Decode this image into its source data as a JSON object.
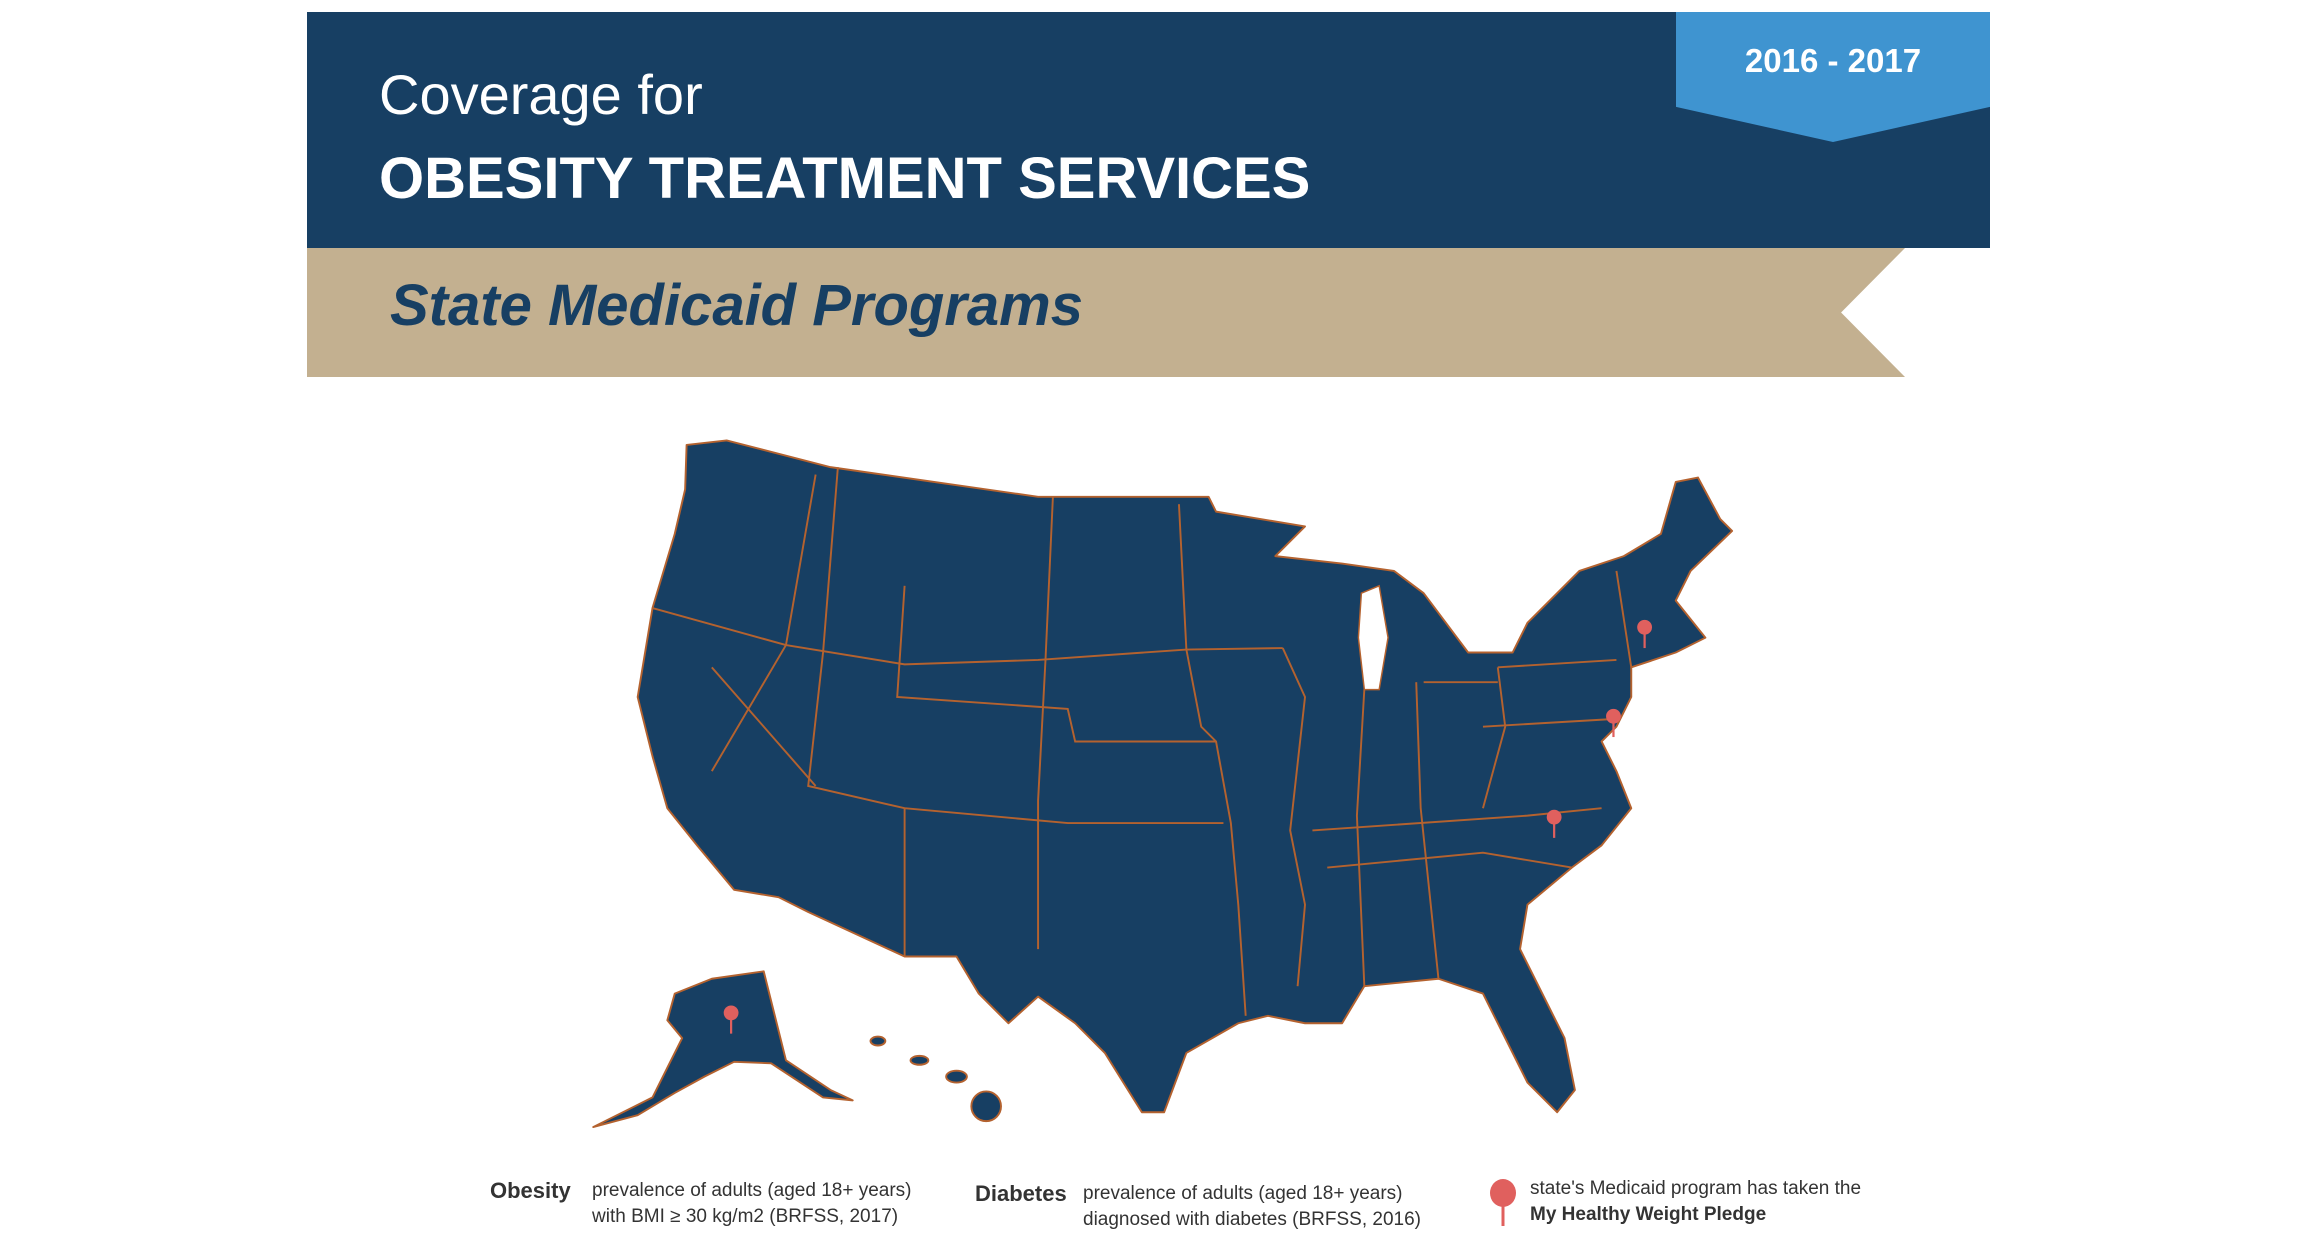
{
  "header": {
    "subtitle": "Coverage for",
    "title": "OBESITY TREATMENT SERVICES",
    "years": "2016 - 2017",
    "banner": "State Medicaid Programs"
  },
  "colors": {
    "navy": "#173f63",
    "tan": "#c3b090",
    "year_badge": "#3f94d0",
    "pin": "#e0605e",
    "state_border": "#b4622f"
  },
  "map": {
    "pledge_states": [
      "Connecticut",
      "Delaware",
      "North Carolina",
      "Alaska"
    ]
  },
  "legend": {
    "obesity": {
      "key": "Obesity",
      "line1": "prevalence of adults (aged 18+ years)",
      "line2": "with BMI ≥ 30 kg/m2 (BRFSS, 2017)"
    },
    "diabetes": {
      "key": "Diabetes",
      "line1": "prevalence of adults (aged 18+ years)",
      "line2": "diagnosed with diabetes (BRFSS, 2016)"
    },
    "pledge": {
      "line1": "state's Medicaid program has taken the",
      "line2": "My Healthy Weight Pledge",
      "icon": "map-pin-icon"
    }
  }
}
